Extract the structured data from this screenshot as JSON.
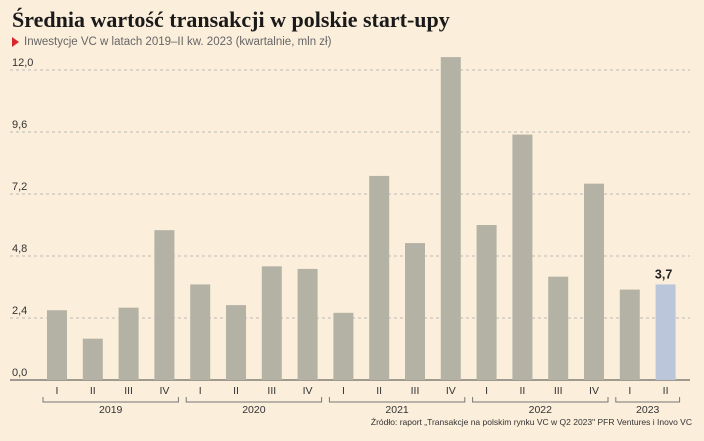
{
  "header": {
    "title": "Średnia wartość transakcji w polskie start-upy",
    "subtitle": "Inwestycje VC w latach 2019–II kw. 2023 (kwartalnie, mln zł)"
  },
  "footer": {
    "source": "Źródło: raport „Transakcje na polskim rynku VC w Q2 2023\" PFR Ventures i Inovo VC"
  },
  "colors": {
    "bar": "#b4b2a5",
    "highlight": "#bcc6da",
    "background": "#fbeedb",
    "grid": "#aaaaaa",
    "accent": "#d8262b"
  },
  "chart_data": {
    "type": "bar",
    "title": "Średnia wartość transakcji w polskie start-upy",
    "ylim": [
      0,
      12.4
    ],
    "yticks": [
      "0,0",
      "2,4",
      "4,8",
      "7,2",
      "9,6",
      "12,0"
    ],
    "ytick_values": [
      0,
      2.4,
      4.8,
      7.2,
      9.6,
      12.0
    ],
    "grid": "horizontal dashed",
    "groups": [
      {
        "label": "2019",
        "quarters": [
          "I",
          "II",
          "III",
          "IV"
        ],
        "values": [
          2.7,
          1.6,
          2.8,
          5.8
        ]
      },
      {
        "label": "2020",
        "quarters": [
          "I",
          "II",
          "III",
          "IV"
        ],
        "values": [
          3.7,
          2.9,
          4.4,
          4.3
        ]
      },
      {
        "label": "2021",
        "quarters": [
          "I",
          "II",
          "III",
          "IV"
        ],
        "values": [
          2.6,
          7.9,
          5.3,
          12.5
        ]
      },
      {
        "label": "2022",
        "quarters": [
          "I",
          "II",
          "III",
          "IV"
        ],
        "values": [
          6.0,
          9.5,
          4.0,
          7.6
        ]
      },
      {
        "label": "2023",
        "quarters": [
          "I",
          "II"
        ],
        "values": [
          3.5,
          3.7
        ]
      }
    ],
    "highlight": {
      "group": 4,
      "index": 1,
      "label": "3,7"
    }
  }
}
